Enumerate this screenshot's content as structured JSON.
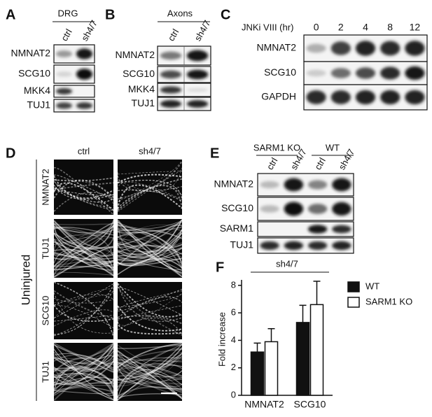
{
  "panels": {
    "A": {
      "letter": "A",
      "header": "DRG",
      "lanes": [
        "ctrl",
        "sh4/7"
      ],
      "rows": [
        "NMNAT2",
        "SCG10",
        "MKK4",
        "TUJ1"
      ]
    },
    "B": {
      "letter": "B",
      "header": "Axons",
      "lanes": [
        "ctrl",
        "sh4/7"
      ],
      "rows": [
        "NMNAT2",
        "SCG10",
        "MKK4",
        "TUJ1"
      ]
    },
    "C": {
      "letter": "C",
      "header": "JNKi VIII (hr)",
      "lanes": [
        "0",
        "2",
        "4",
        "8",
        "12"
      ],
      "rows": [
        "NMNAT2",
        "SCG10",
        "GAPDH"
      ]
    },
    "D": {
      "letter": "D",
      "columns": [
        "ctrl",
        "sh4/7"
      ],
      "rows": [
        "NMNAT2",
        "TUJ1",
        "SCG10",
        "TUJ1"
      ],
      "side": "Uninjured"
    },
    "E": {
      "letter": "E",
      "groups": [
        "SARM1 KO",
        "WT"
      ],
      "lanes": [
        "ctrl",
        "sh4/7",
        "ctrl",
        "sh4/7"
      ],
      "rows": [
        "NMNAT2",
        "SCG10",
        "SARM1",
        "TUJ1"
      ]
    },
    "F": {
      "letter": "F"
    }
  },
  "chart_data": {
    "type": "bar",
    "group_label": "sh4/7",
    "y_label": "Fold increase",
    "categories": [
      "NMNAT2",
      "SCG10"
    ],
    "series": [
      {
        "name": "WT",
        "color": "#111111",
        "values": [
          3.15,
          5.3
        ],
        "errors": [
          0.65,
          1.25
        ]
      },
      {
        "name": "SARM1 KO",
        "color": "#ffffff",
        "values": [
          3.9,
          6.6
        ],
        "errors": [
          0.95,
          1.7
        ]
      }
    ],
    "ylim": [
      0,
      8.4
    ],
    "yticks": [
      0,
      2,
      4,
      6,
      8
    ]
  }
}
